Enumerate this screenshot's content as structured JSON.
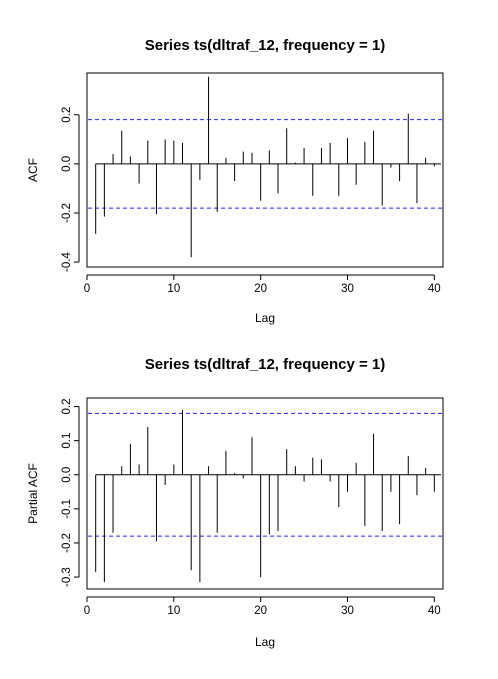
{
  "chart_data": [
    {
      "type": "bar",
      "title": "Series ts(dltraf_12, frequency = 1)",
      "xlabel": "Lag",
      "ylabel": "ACF",
      "xlim": [
        0,
        41
      ],
      "ylim": [
        -0.42,
        0.37
      ],
      "x_ticks": [
        0,
        10,
        20,
        30,
        40
      ],
      "y_ticks": [
        -0.4,
        -0.2,
        0.0,
        0.2
      ],
      "y_tick_labels": [
        "-0.4",
        "-0.2",
        "0.0",
        "0.2"
      ],
      "conf_band": 0.18,
      "grid": false,
      "lags": [
        1,
        2,
        3,
        4,
        5,
        6,
        7,
        8,
        9,
        10,
        11,
        12,
        13,
        14,
        15,
        16,
        17,
        18,
        19,
        20,
        21,
        22,
        23,
        24,
        25,
        26,
        27,
        28,
        29,
        30,
        31,
        32,
        33,
        34,
        35,
        36,
        37,
        38,
        39,
        40
      ],
      "values": [
        -0.285,
        -0.215,
        0.04,
        0.135,
        0.03,
        -0.08,
        0.095,
        -0.205,
        0.1,
        0.095,
        0.085,
        -0.38,
        -0.065,
        0.355,
        -0.195,
        0.025,
        -0.07,
        0.05,
        0.045,
        -0.15,
        0.055,
        -0.12,
        0.145,
        0.005,
        0.065,
        -0.13,
        0.065,
        0.085,
        -0.13,
        0.105,
        -0.085,
        0.09,
        0.135,
        -0.17,
        -0.015,
        -0.07,
        0.205,
        -0.16,
        0.025,
        -0.01
      ]
    },
    {
      "type": "bar",
      "title": "Series  ts(dltraf_12, frequency = 1)",
      "xlabel": "Lag",
      "ylabel": "Partial ACF",
      "xlim": [
        0,
        41
      ],
      "ylim": [
        -0.335,
        0.225
      ],
      "x_ticks": [
        0,
        10,
        20,
        30,
        40
      ],
      "y_ticks": [
        -0.3,
        -0.2,
        -0.1,
        0.0,
        0.1,
        0.2
      ],
      "y_tick_labels": [
        "-0.3",
        "-0.2",
        "-0.1",
        "0.0",
        "0.1",
        "0.2"
      ],
      "conf_band": 0.18,
      "grid": false,
      "lags": [
        1,
        2,
        3,
        4,
        5,
        6,
        7,
        8,
        9,
        10,
        11,
        12,
        13,
        14,
        15,
        16,
        17,
        18,
        19,
        20,
        21,
        22,
        23,
        24,
        25,
        26,
        27,
        28,
        29,
        30,
        31,
        32,
        33,
        34,
        35,
        36,
        37,
        38,
        39,
        40
      ],
      "values": [
        -0.285,
        -0.315,
        -0.17,
        0.025,
        0.09,
        0.03,
        0.14,
        -0.195,
        -0.03,
        0.03,
        0.19,
        -0.28,
        -0.315,
        0.025,
        -0.17,
        0.07,
        0.005,
        -0.01,
        0.11,
        -0.3,
        -0.175,
        -0.165,
        0.075,
        0.025,
        -0.02,
        0.05,
        0.045,
        -0.02,
        -0.095,
        -0.05,
        0.035,
        -0.15,
        0.12,
        -0.165,
        -0.05,
        -0.145,
        0.055,
        -0.06,
        0.02,
        -0.05
      ]
    }
  ]
}
